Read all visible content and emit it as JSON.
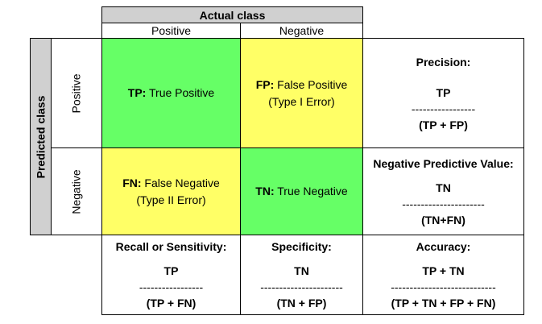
{
  "header": {
    "actual_class": "Actual class",
    "positive": "Positive",
    "negative": "Negative",
    "predicted_class": "Predicted class",
    "pred_positive": "Positive",
    "pred_negative": "Negative"
  },
  "cells": {
    "tp_abbr": "TP:",
    "tp_text": " True Positive",
    "fp_abbr": "FP:",
    "fp_text": " False Positive",
    "fp_note": "(Type I Error)",
    "fn_abbr": "FN:",
    "fn_text": " False Negative",
    "fn_note": "(Type II Error)",
    "tn_abbr": "TN:",
    "tn_text": " True Negative"
  },
  "metrics": {
    "precision": {
      "title": "Precision:",
      "numerator": "TP",
      "dashes": "-----------------",
      "denominator": "(TP + FP)"
    },
    "npv": {
      "title": "Negative Predictive Value:",
      "numerator": "TN",
      "dashes": "----------------------",
      "denominator": "(TN+FN)"
    },
    "recall": {
      "title": "Recall or Sensitivity:",
      "numerator": "TP",
      "dashes": "-----------------",
      "denominator": "(TP + FN)"
    },
    "specificity": {
      "title": "Specificity:",
      "numerator": "TN",
      "dashes": "----------------------",
      "denominator": "(TN + FP)"
    },
    "accuracy": {
      "title": "Accuracy:",
      "numerator": "TP + TN",
      "dashes": "----------------------------",
      "denominator": "(TP + TN + FP + FN)"
    }
  },
  "colors": {
    "green": "#66ff66",
    "yellow": "#ffff66",
    "header_gray": "#d0d0d0"
  }
}
